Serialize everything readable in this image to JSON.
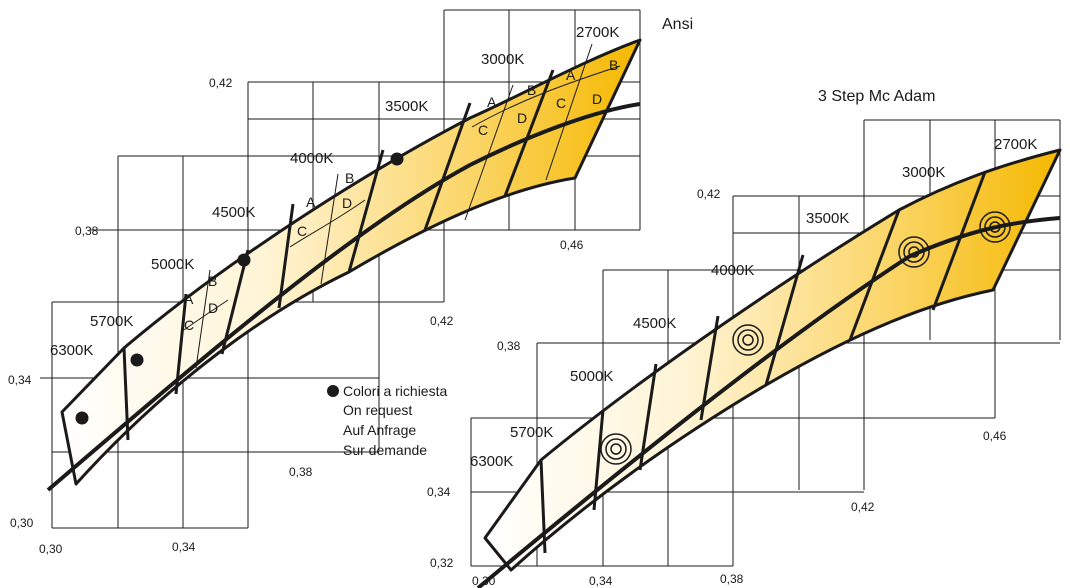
{
  "ansi": {
    "title": "Ansi",
    "cct_labels": [
      "2700K",
      "3000K",
      "3500K",
      "4000K",
      "4500K",
      "5000K",
      "5700K",
      "6300K"
    ],
    "cell_letters": {
      "k2700_3000": [
        "A",
        "B",
        "C",
        "D"
      ],
      "k4000": [
        "A",
        "B",
        "C",
        "D"
      ],
      "k5000": [
        "A",
        "B",
        "C",
        "D"
      ]
    },
    "ticks": {
      "x": [
        "0,30",
        "0,34",
        "0,38",
        "0,42",
        "0,46"
      ],
      "y": [
        "0,30",
        "0,34",
        "0,38",
        "0,42"
      ]
    }
  },
  "macadam": {
    "title": "3 Step Mc Adam",
    "cct_labels": [
      "2700K",
      "3000K",
      "3500K",
      "4000K",
      "4500K",
      "5000K",
      "5700K",
      "6300K"
    ],
    "ticks": {
      "x": [
        "0,30",
        "0,34",
        "0,38",
        "0,42",
        "0,46"
      ],
      "y": [
        "0,32",
        "0,34",
        "0,38",
        "0,42"
      ]
    }
  },
  "legend": {
    "items": [
      "Colori a richiesta",
      "On request",
      "Auf Anfrage",
      "Sur demande"
    ]
  },
  "colors": {
    "band_warm": "#f5b800",
    "band_cool": "#ffffff",
    "line": "#1a1a1a"
  }
}
